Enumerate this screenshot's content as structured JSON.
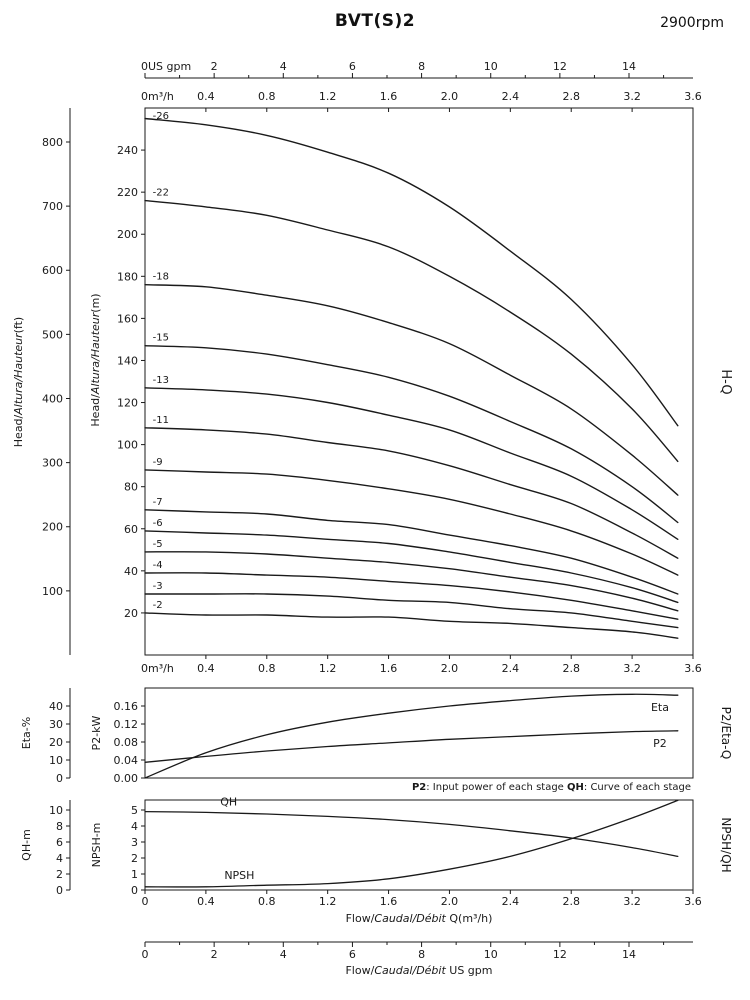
{
  "header": {
    "title": "BVT(S)2",
    "rpm": "2900rpm"
  },
  "side_labels": {
    "main": "H-Q",
    "mid": "P2/Eta-Q",
    "bottom": "NPSH/QH"
  },
  "note": {
    "parts": [
      {
        "t": "P2",
        "b": true
      },
      {
        "t": ": Input power of each stage ",
        "b": false
      },
      {
        "t": "QH",
        "b": true
      },
      {
        "t": ": Curve of each stage",
        "b": false
      }
    ]
  },
  "chart_data": [
    {
      "id": "hq",
      "type": "line",
      "title": "H-Q",
      "x": [
        0,
        0.4,
        0.8,
        1.2,
        1.6,
        2.0,
        2.4,
        2.8,
        3.2,
        3.5
      ],
      "xlim": [
        0,
        3.6
      ],
      "top_axes": {
        "gpm": {
          "zero_label": "0US gpm",
          "ticks": [
            2,
            4,
            6,
            8,
            10,
            12,
            14
          ]
        },
        "m3h": {
          "zero_label": "0m³/h",
          "ticks": [
            0.4,
            0.8,
            1.2,
            1.6,
            2.0,
            2.4,
            2.8,
            3.2,
            3.6
          ]
        }
      },
      "bottom_ticks": {
        "zero_label": "0m³/h",
        "ticks": [
          0.4,
          0.8,
          1.2,
          1.6,
          2.0,
          2.4,
          2.8,
          3.2,
          3.6
        ]
      },
      "y_outer": {
        "label_parts": [
          {
            "t": "Head/",
            "i": false
          },
          {
            "t": "Altura/Hauteur",
            "i": true
          },
          {
            "t": "(ft)",
            "i": false
          }
        ],
        "unit": "ft",
        "ticks": [
          100,
          200,
          300,
          400,
          500,
          600,
          700,
          800
        ],
        "m_per_unit": 0.3048
      },
      "y_inner": {
        "label_parts": [
          {
            "t": "Head/",
            "i": false
          },
          {
            "t": "Altura/Hauteur",
            "i": true
          },
          {
            "t": "(m)",
            "i": false
          }
        ],
        "unit": "m",
        "ticks": [
          20,
          40,
          60,
          80,
          100,
          120,
          140,
          160,
          180,
          200,
          220,
          240
        ],
        "lim": [
          0,
          260
        ]
      },
      "series": [
        {
          "name": "-26",
          "values": [
            255,
            252,
            247,
            239,
            229,
            213,
            192,
            169,
            138,
            109
          ]
        },
        {
          "name": "-22",
          "values": [
            216,
            213,
            209,
            202,
            194,
            180,
            163,
            143,
            117,
            92
          ]
        },
        {
          "name": "-18",
          "values": [
            176,
            175,
            171,
            166,
            158,
            148,
            133,
            117,
            95,
            76
          ]
        },
        {
          "name": "-15",
          "values": [
            147,
            146,
            143,
            138,
            132,
            123,
            111,
            98,
            80,
            63
          ]
        },
        {
          "name": "-13",
          "values": [
            127,
            126,
            124,
            120,
            114,
            107,
            96,
            85,
            69,
            55
          ]
        },
        {
          "name": "-11",
          "values": [
            108,
            107,
            105,
            101,
            97,
            90,
            81,
            72,
            58,
            46
          ]
        },
        {
          "name": "-9",
          "values": [
            88,
            87,
            86,
            83,
            79,
            74,
            67,
            59,
            48,
            38
          ]
        },
        {
          "name": "-7",
          "values": [
            69,
            68,
            67,
            64,
            62,
            57,
            52,
            46,
            37,
            29
          ]
        },
        {
          "name": "-6",
          "values": [
            59,
            58,
            57,
            55,
            53,
            49,
            44,
            39,
            32,
            25
          ]
        },
        {
          "name": "-5",
          "values": [
            49,
            49,
            48,
            46,
            44,
            41,
            37,
            33,
            27,
            21
          ]
        },
        {
          "name": "-4",
          "values": [
            39,
            39,
            38,
            37,
            35,
            33,
            30,
            26,
            21,
            17
          ]
        },
        {
          "name": "-3",
          "values": [
            29,
            29,
            29,
            28,
            26,
            25,
            22,
            20,
            16,
            13
          ]
        },
        {
          "name": "-2",
          "values": [
            20,
            19,
            19,
            18,
            18,
            16,
            15,
            13,
            11,
            8
          ]
        }
      ]
    },
    {
      "id": "p2eta",
      "type": "line",
      "title": "P2/Eta-Q",
      "x": [
        0,
        0.4,
        0.8,
        1.2,
        1.6,
        2.0,
        2.4,
        2.8,
        3.2,
        3.5
      ],
      "xlim": [
        0,
        3.6
      ],
      "y_outer": {
        "label_parts": [
          {
            "t": "Eta-%",
            "i": false
          }
        ],
        "ticks": [
          0,
          10,
          20,
          30,
          40
        ],
        "lim": [
          0,
          50
        ]
      },
      "y_inner": {
        "label_parts": [
          {
            "t": "P2-kW",
            "i": false
          }
        ],
        "ticks": [
          "0.00",
          "0.04",
          "0.08",
          "0.12",
          "0.16"
        ],
        "lim": [
          0,
          0.2
        ]
      },
      "series": [
        {
          "name": "Eta",
          "axis": "outer",
          "values": [
            0,
            14,
            24,
            31,
            36,
            40,
            43,
            45.5,
            46.5,
            46
          ]
        },
        {
          "name": "P2",
          "axis": "inner",
          "values": [
            0.035,
            0.048,
            0.06,
            0.07,
            0.078,
            0.086,
            0.092,
            0.098,
            0.103,
            0.105
          ]
        }
      ]
    },
    {
      "id": "npshqh",
      "type": "line",
      "title": "NPSH/QH",
      "x": [
        0,
        0.4,
        0.8,
        1.2,
        1.6,
        2.0,
        2.4,
        2.8,
        3.2,
        3.5
      ],
      "xlim": [
        0,
        3.6
      ],
      "y_outer": {
        "label_parts": [
          {
            "t": "QH-m",
            "i": false
          }
        ],
        "ticks": [
          0,
          2,
          4,
          6,
          8,
          10
        ],
        "lim": [
          0,
          11.25
        ]
      },
      "y_inner": {
        "label_parts": [
          {
            "t": "NPSH-m",
            "i": false
          }
        ],
        "ticks": [
          0,
          1,
          2,
          3,
          4,
          5
        ],
        "lim": [
          0,
          5.625
        ]
      },
      "series": [
        {
          "name": "QH",
          "axis": "outer",
          "values": [
            9.8,
            9.7,
            9.5,
            9.2,
            8.8,
            8.2,
            7.4,
            6.5,
            5.3,
            4.2
          ]
        },
        {
          "name": "NPSH",
          "axis": "inner",
          "values": [
            0.2,
            0.2,
            0.3,
            0.4,
            0.7,
            1.3,
            2.1,
            3.2,
            4.5,
            5.6
          ]
        }
      ],
      "x_bottom": {
        "ticks": [
          "0",
          "0.4",
          "0.8",
          "1.2",
          "1.6",
          "2.0",
          "2.4",
          "2.8",
          "3.2",
          "3.6"
        ],
        "label_parts": [
          {
            "t": "Flow/",
            "i": false
          },
          {
            "t": "Caudal/Débit",
            "i": true
          },
          {
            "t": " Q(m³/h)",
            "i": false
          }
        ]
      },
      "x_gpm": {
        "ticks": [
          0,
          2,
          4,
          6,
          8,
          10,
          12,
          14
        ],
        "label_parts": [
          {
            "t": "Flow/",
            "i": false
          },
          {
            "t": "Caudal/Débit",
            "i": true
          },
          {
            "t": "  US gpm",
            "i": false
          }
        ]
      }
    }
  ]
}
